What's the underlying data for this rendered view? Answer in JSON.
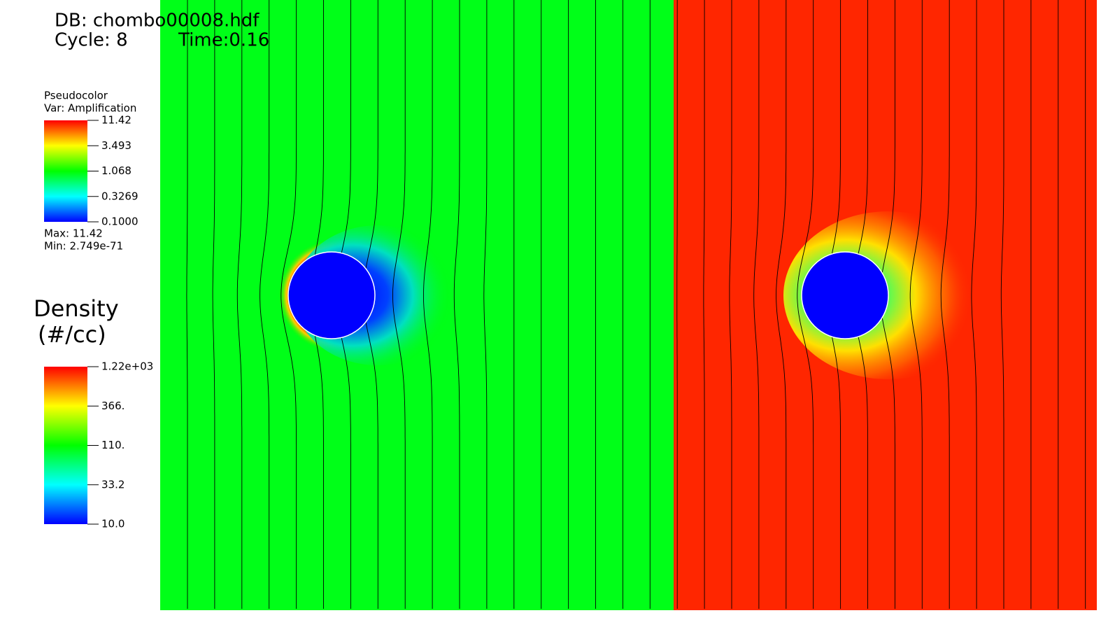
{
  "header": {
    "db": "DB: chombo00008.hdf",
    "cycle": "Cycle: 8",
    "time": "Time:0.16"
  },
  "legends": [
    {
      "title": "Pseudocolor",
      "var": "Var: Amplification",
      "ticks": [
        "11.42",
        "3.493",
        "1.068",
        "0.3269",
        "0.1000"
      ],
      "max": "Max:  11.42",
      "min": "Min:  2.749e-71"
    },
    {
      "title": "Density",
      "subtitle": "(#/cc)",
      "ticks": [
        "1.22e+03",
        "366.",
        "110.",
        "33.2",
        "10.0"
      ]
    }
  ]
}
